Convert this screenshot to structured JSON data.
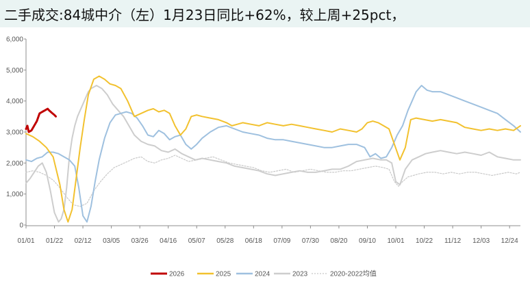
{
  "header": {
    "title": "二手成交:84城中介（左）1月23日同比+62%，较上周+25pct，"
  },
  "chart_data": {
    "type": "line",
    "title": "二手成交:84城中介（左）1月23日同比+62%，较上周+25pct，",
    "xlabel": "",
    "ylabel": "",
    "ylim": [
      0,
      6000
    ],
    "yticks": [
      "0",
      "1,000",
      "2,000",
      "3,000",
      "4,000",
      "5,000",
      "6,000"
    ],
    "ytick_values": [
      0,
      1000,
      2000,
      3000,
      4000,
      5000,
      6000
    ],
    "xlim": [
      0,
      365
    ],
    "xticks": [
      "01/01",
      "01/22",
      "02/12",
      "03/05",
      "03/26",
      "04/16",
      "05/07",
      "05/28",
      "06/18",
      "07/09",
      "07/30",
      "08/20",
      "09/10",
      "10/01",
      "10/22",
      "11/12",
      "12/03",
      "12/24"
    ],
    "xtick_days": [
      0,
      21,
      42,
      63,
      84,
      105,
      126,
      147,
      168,
      189,
      210,
      231,
      252,
      273,
      294,
      315,
      336,
      357
    ],
    "grid": false,
    "legend_position": "bottom",
    "x_unit_note": "x values are day-of-year offsets from 01/01",
    "series": [
      {
        "name": "2026",
        "color": "#c00000",
        "width": 3,
        "dash": "",
        "x": [
          0,
          1,
          2,
          4,
          6,
          8,
          10,
          12,
          14,
          16,
          17,
          19,
          21,
          22
        ],
        "values": [
          3100,
          3200,
          3000,
          3050,
          3200,
          3350,
          3600,
          3650,
          3700,
          3750,
          3700,
          3620,
          3550,
          3500
        ]
      },
      {
        "name": "2025",
        "color": "#f2c12e",
        "width": 2,
        "dash": "",
        "x": [
          0,
          5,
          10,
          15,
          20,
          25,
          28,
          31,
          34,
          37,
          40,
          43,
          46,
          50,
          54,
          58,
          62,
          66,
          70,
          75,
          80,
          85,
          90,
          94,
          98,
          102,
          106,
          110,
          114,
          118,
          122,
          126,
          130,
          136,
          142,
          148,
          152,
          156,
          160,
          166,
          172,
          178,
          184,
          190,
          196,
          202,
          208,
          214,
          220,
          226,
          232,
          238,
          244,
          248,
          252,
          256,
          260,
          264,
          268,
          272,
          276,
          280,
          284,
          288,
          294,
          300,
          306,
          312,
          318,
          324,
          330,
          336,
          342,
          348,
          354,
          360,
          365
        ],
        "values": [
          2950,
          2850,
          2700,
          2500,
          2200,
          1300,
          500,
          100,
          500,
          1500,
          2500,
          3400,
          4200,
          4700,
          4800,
          4700,
          4550,
          4500,
          4400,
          4000,
          3500,
          3600,
          3700,
          3750,
          3650,
          3700,
          3600,
          3200,
          2900,
          3100,
          3500,
          3550,
          3500,
          3450,
          3400,
          3300,
          3200,
          3250,
          3300,
          3250,
          3200,
          3300,
          3250,
          3200,
          3250,
          3200,
          3150,
          3100,
          3050,
          3000,
          3100,
          3050,
          3000,
          3100,
          3300,
          3350,
          3300,
          3200,
          3100,
          2600,
          2100,
          2500,
          3400,
          3450,
          3400,
          3350,
          3400,
          3350,
          3300,
          3150,
          3100,
          3050,
          3100,
          3050,
          3100,
          3050,
          3200
        ]
      },
      {
        "name": "2024",
        "color": "#9ec0df",
        "width": 2,
        "dash": "",
        "x": [
          0,
          4,
          8,
          12,
          16,
          20,
          24,
          28,
          32,
          36,
          39,
          42,
          45,
          48,
          51,
          54,
          58,
          62,
          66,
          70,
          74,
          78,
          82,
          86,
          90,
          94,
          98,
          102,
          106,
          110,
          114,
          118,
          122,
          126,
          130,
          136,
          142,
          148,
          154,
          160,
          166,
          172,
          178,
          184,
          190,
          196,
          202,
          208,
          214,
          220,
          226,
          232,
          238,
          244,
          250,
          254,
          258,
          262,
          266,
          270,
          274,
          278,
          282,
          285,
          288,
          292,
          296,
          300,
          306,
          312,
          318,
          324,
          330,
          336,
          342,
          348,
          354,
          360,
          365
        ],
        "values": [
          2100,
          2050,
          2150,
          2200,
          2350,
          2350,
          2300,
          2200,
          2100,
          1900,
          1200,
          300,
          100,
          600,
          1400,
          2100,
          2800,
          3300,
          3550,
          3600,
          3650,
          3600,
          3450,
          3200,
          2900,
          2850,
          3050,
          2950,
          2750,
          2850,
          2900,
          2600,
          2450,
          2600,
          2800,
          3000,
          3150,
          3200,
          3100,
          3000,
          2950,
          2900,
          2800,
          2750,
          2750,
          2700,
          2650,
          2600,
          2550,
          2500,
          2500,
          2550,
          2600,
          2600,
          2500,
          2200,
          2300,
          2150,
          2200,
          2500,
          2900,
          3200,
          3700,
          4000,
          4300,
          4500,
          4350,
          4300,
          4300,
          4200,
          4100,
          4000,
          3900,
          3800,
          3700,
          3600,
          3400,
          3200,
          3000
        ]
      },
      {
        "name": "2023",
        "color": "#cdcdcd",
        "width": 2,
        "dash": "",
        "x": [
          0,
          3,
          6,
          9,
          12,
          15,
          18,
          21,
          24,
          26,
          28,
          30,
          32,
          34,
          36,
          38,
          40,
          42,
          44,
          46,
          48,
          50,
          52,
          56,
          60,
          64,
          68,
          72,
          76,
          80,
          85,
          90,
          95,
          100,
          105,
          110,
          115,
          120,
          125,
          130,
          136,
          142,
          148,
          154,
          160,
          166,
          172,
          178,
          184,
          190,
          196,
          202,
          208,
          214,
          220,
          226,
          232,
          238,
          244,
          250,
          256,
          262,
          266,
          270,
          273,
          276,
          280,
          285,
          290,
          295,
          300,
          306,
          312,
          318,
          324,
          330,
          336,
          342,
          348,
          354,
          360,
          365
        ],
        "values": [
          1350,
          1500,
          1700,
          1900,
          2000,
          1700,
          1100,
          400,
          100,
          200,
          500,
          1200,
          2200,
          2800,
          3200,
          3500,
          3700,
          3900,
          4100,
          4300,
          4400,
          4450,
          4500,
          4400,
          4200,
          3900,
          3700,
          3500,
          3200,
          2900,
          2700,
          2600,
          2550,
          2400,
          2350,
          2450,
          2300,
          2200,
          2100,
          2150,
          2100,
          2050,
          2000,
          1900,
          1850,
          1800,
          1750,
          1650,
          1600,
          1650,
          1700,
          1750,
          1700,
          1700,
          1750,
          1800,
          1800,
          1900,
          2050,
          2100,
          2150,
          2100,
          2100,
          2000,
          1400,
          1300,
          1800,
          2100,
          2200,
          2300,
          2350,
          2400,
          2350,
          2300,
          2350,
          2300,
          2250,
          2350,
          2200,
          2150,
          2100,
          2100
        ]
      },
      {
        "name": "2020-2022均值",
        "color": "#c8c8c8",
        "width": 1.2,
        "dash": "2,2",
        "x": [
          0,
          5,
          10,
          15,
          20,
          25,
          30,
          35,
          40,
          45,
          50,
          55,
          60,
          65,
          70,
          75,
          80,
          85,
          90,
          95,
          100,
          105,
          110,
          115,
          120,
          126,
          132,
          138,
          144,
          150,
          156,
          162,
          168,
          174,
          180,
          186,
          192,
          198,
          204,
          210,
          216,
          222,
          228,
          234,
          240,
          246,
          252,
          258,
          264,
          268,
          272,
          275,
          278,
          282,
          286,
          290,
          296,
          302,
          308,
          314,
          320,
          326,
          332,
          338,
          344,
          350,
          356,
          362,
          365
        ],
        "values": [
          1700,
          1750,
          1700,
          1600,
          1450,
          1200,
          900,
          650,
          600,
          700,
          1100,
          1400,
          1650,
          1850,
          1950,
          2050,
          2150,
          2200,
          2050,
          2000,
          2100,
          2150,
          2250,
          2150,
          2050,
          2100,
          2150,
          2200,
          2100,
          2000,
          1950,
          1900,
          1850,
          1750,
          1700,
          1750,
          1800,
          1700,
          1750,
          1800,
          1750,
          1700,
          1700,
          1750,
          1750,
          1800,
          1850,
          1900,
          1850,
          1800,
          1400,
          1250,
          1400,
          1550,
          1600,
          1650,
          1700,
          1700,
          1650,
          1700,
          1650,
          1700,
          1700,
          1650,
          1600,
          1650,
          1700,
          1650,
          1700
        ]
      }
    ]
  }
}
